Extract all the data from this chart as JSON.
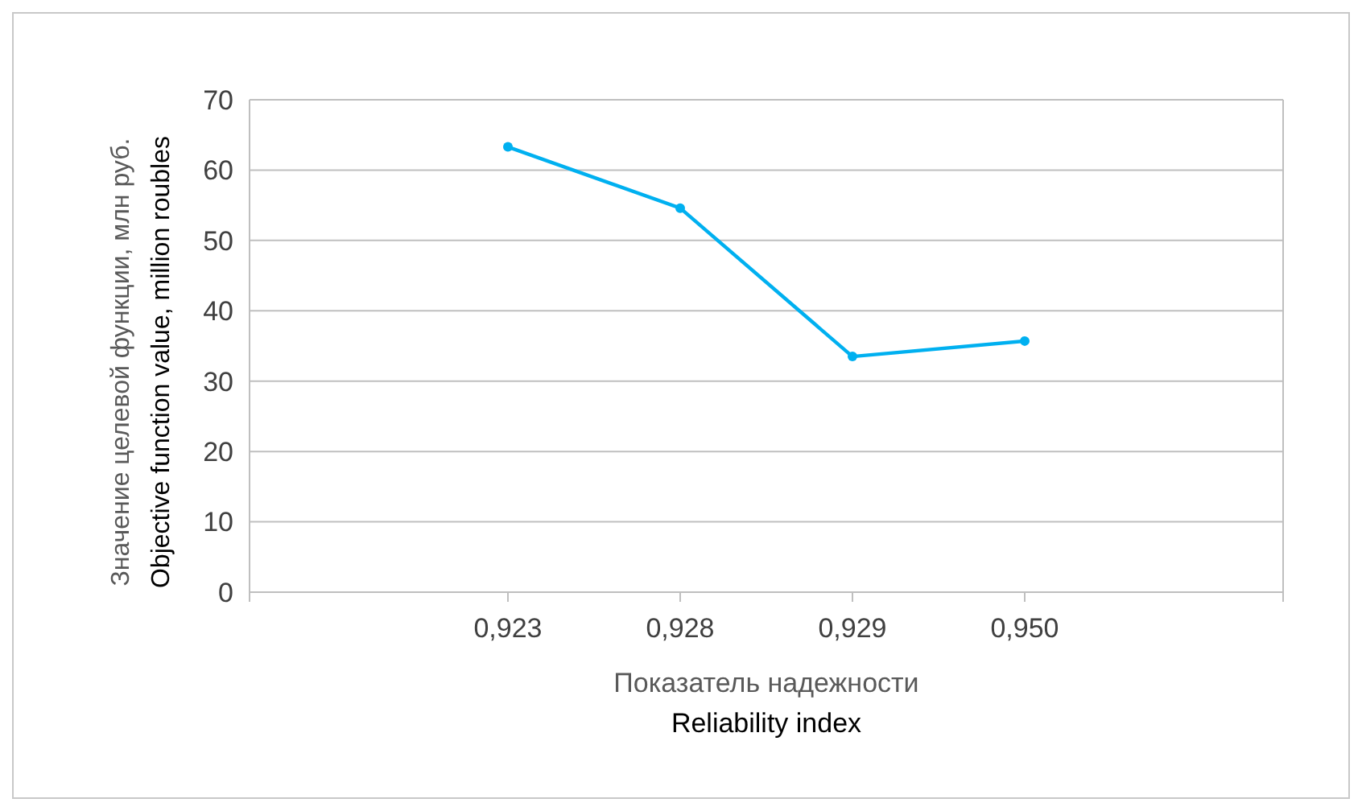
{
  "chart_data": {
    "type": "line",
    "xlabel": "Показатель надежности\nReliability index",
    "ylabel": "Значение целевой функции, млн руб.\nObjective function value, million roubles",
    "categories": [
      null,
      "0,923",
      "0,928",
      "0,929",
      "0,950",
      null
    ],
    "series": [
      {
        "color": "#00b0f0",
        "values": [
          null,
          63.3,
          54.6,
          33.5,
          35.7,
          null
        ]
      }
    ],
    "ylim": [
      0,
      70
    ],
    "yticks": [
      0,
      10,
      20,
      30,
      40,
      50,
      60,
      70
    ],
    "grid": "y",
    "marker": "circle",
    "line_style": "solid"
  }
}
